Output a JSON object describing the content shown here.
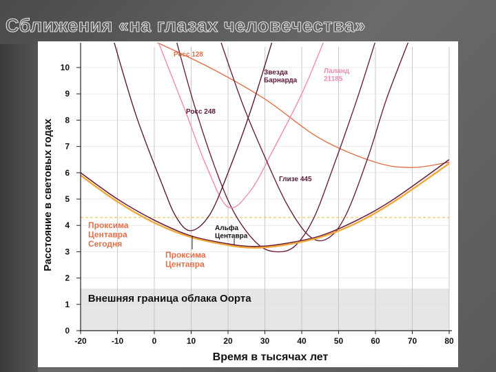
{
  "slide": {
    "title": "Сближения «на глазах человечества»"
  },
  "chart_data": {
    "type": "line",
    "xlabel": "Время в тысячах лет",
    "ylabel": "Расстояние в световых годах",
    "xlim": [
      -20,
      80
    ],
    "ylim": [
      0,
      11
    ],
    "xticks": [
      "-20",
      "-10",
      "0",
      "10",
      "20",
      "30",
      "40",
      "50",
      "60",
      "70",
      "80"
    ],
    "yticks": [
      "0",
      "1",
      "2",
      "3",
      "4",
      "5",
      "6",
      "7",
      "8",
      "9",
      "10"
    ],
    "reference_line": {
      "y": 4.3,
      "color": "#e0c040",
      "style": "dashed"
    },
    "oort_region": {
      "y_max": 1.6,
      "label": "Внешняя граница облака Оорта",
      "color": "#e6e6e6"
    },
    "series": [
      {
        "name": "Росс 128",
        "color": "#e07048",
        "points": [
          [
            0,
            11
          ],
          [
            15,
            10
          ],
          [
            30,
            8.8
          ],
          [
            45,
            7.3
          ],
          [
            60,
            6.4
          ],
          [
            70,
            6.2
          ],
          [
            80,
            6.4
          ]
        ]
      },
      {
        "name": "Звезда Барнарда",
        "color": "#6a2040",
        "points": [
          [
            6,
            11
          ],
          [
            11,
            8.5
          ],
          [
            17,
            6
          ],
          [
            22,
            4.4
          ],
          [
            28,
            3.3
          ],
          [
            33,
            3.0
          ],
          [
            38,
            3.2
          ],
          [
            43,
            4.2
          ],
          [
            48,
            6
          ],
          [
            55,
            8.8
          ],
          [
            60,
            11
          ]
        ]
      },
      {
        "name": "Лаланд 21185",
        "color": "#f08ab0",
        "points": [
          [
            1,
            11
          ],
          [
            8,
            8.5
          ],
          [
            14,
            6.3
          ],
          [
            20,
            4.7
          ],
          [
            26,
            5.3
          ],
          [
            32,
            6.8
          ],
          [
            40,
            9
          ],
          [
            46,
            11
          ]
        ]
      },
      {
        "name": "Росс 248",
        "color": "#5a1838",
        "points": [
          [
            -11,
            11
          ],
          [
            -5,
            8.2
          ],
          [
            2,
            5.6
          ],
          [
            6,
            4.3
          ],
          [
            10,
            3.8
          ],
          [
            15,
            4.4
          ],
          [
            20,
            6
          ],
          [
            26,
            8.3
          ],
          [
            32,
            11
          ]
        ]
      },
      {
        "name": "Глизе 445",
        "color": "#6a2040",
        "points": [
          [
            18,
            11
          ],
          [
            24,
            8.6
          ],
          [
            30,
            6.6
          ],
          [
            36,
            4.8
          ],
          [
            42,
            3.6
          ],
          [
            47,
            3.5
          ],
          [
            52,
            4.4
          ],
          [
            58,
            6.6
          ],
          [
            63,
            8.8
          ],
          [
            69,
            11
          ]
        ]
      },
      {
        "name": "Альфа Центавра",
        "color": "#6a2040",
        "points": [
          [
            -20,
            6.0
          ],
          [
            -10,
            5.0
          ],
          [
            0,
            4.2
          ],
          [
            10,
            3.6
          ],
          [
            20,
            3.3
          ],
          [
            27,
            3.2
          ],
          [
            35,
            3.3
          ],
          [
            45,
            3.6
          ],
          [
            55,
            4.2
          ],
          [
            65,
            5.0
          ],
          [
            80,
            6.5
          ]
        ]
      },
      {
        "name": "Проксима Центавра",
        "color": "#f0a838",
        "points": [
          [
            -20,
            5.9
          ],
          [
            -10,
            4.9
          ],
          [
            0,
            4.1
          ],
          [
            10,
            3.55
          ],
          [
            20,
            3.25
          ],
          [
            27,
            3.15
          ],
          [
            35,
            3.25
          ],
          [
            45,
            3.55
          ],
          [
            55,
            4.1
          ],
          [
            65,
            4.9
          ],
          [
            80,
            6.35
          ]
        ]
      }
    ],
    "annotations": [
      {
        "text_lines": [
          "Росс 128"
        ],
        "color": "#e07048"
      },
      {
        "text_lines": [
          "Звезда",
          "Барнарда"
        ],
        "color": "#5a1838"
      },
      {
        "text_lines": [
          "Лаланд",
          "21185"
        ],
        "color": "#f08ab0"
      },
      {
        "text_lines": [
          "Росс 248"
        ],
        "color": "#5a1838"
      },
      {
        "text_lines": [
          "Глизе 445"
        ],
        "color": "#5a1838"
      },
      {
        "text_lines": [
          "Альфа",
          "Центавра"
        ],
        "color": "#111111"
      },
      {
        "text_lines": [
          "Проксима",
          "Центавра",
          "Сегодня"
        ],
        "color": "#e07048"
      },
      {
        "text_lines": [
          "Проксима",
          "Центавра"
        ],
        "color": "#e07048"
      }
    ]
  }
}
